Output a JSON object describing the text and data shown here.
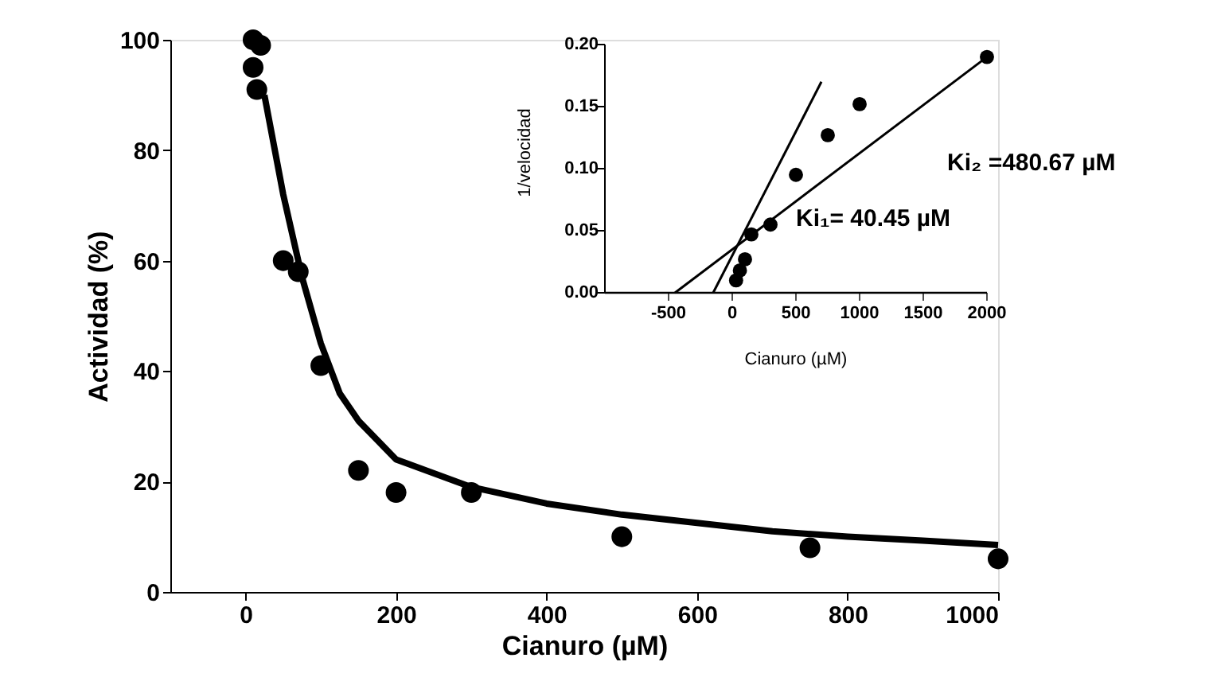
{
  "chart_data": [
    {
      "type": "line",
      "xlabel": "Cianuro (µM)",
      "ylabel": "Actividad (%)",
      "xlim": [
        -100,
        1000
      ],
      "ylim": [
        0,
        100
      ],
      "xticks": [
        0,
        200,
        400,
        600,
        800,
        1000
      ],
      "yticks": [
        0,
        20,
        40,
        60,
        80,
        100
      ],
      "grid": false,
      "marker": "circle",
      "series": [
        {
          "type": "scatter",
          "color": "#000000",
          "x": [
            10,
            20,
            10,
            15,
            50,
            70,
            100,
            150,
            200,
            300,
            500,
            750,
            1000
          ],
          "values": [
            100,
            99,
            95,
            91,
            60,
            58,
            41,
            22,
            18,
            18,
            10,
            8,
            6
          ]
        },
        {
          "color": "#000000",
          "marker": "none",
          "x": [
            25,
            50,
            75,
            100,
            125,
            150,
            200,
            300,
            400,
            500,
            600,
            700,
            800,
            900,
            1000
          ],
          "values": [
            90,
            72,
            57,
            45,
            36,
            31,
            24,
            19,
            16,
            14,
            12.5,
            11,
            10,
            9.3,
            8.5
          ]
        }
      ]
    },
    {
      "type": "line",
      "xlabel": "Cianuro (µM)",
      "ylabel": "1/velocidad",
      "xlim": [
        -1000,
        2000
      ],
      "ylim": [
        0,
        0.2
      ],
      "xticks": [
        -500,
        0,
        500,
        1000,
        1500,
        2000
      ],
      "yticks": [
        {
          "value": 0,
          "label": "0.00"
        },
        {
          "value": 0.05,
          "label": "0.05"
        },
        {
          "value": 0.1,
          "label": "0.10"
        },
        {
          "value": 0.15,
          "label": "0.15"
        },
        {
          "value": 0.2,
          "label": "0.20"
        }
      ],
      "grid": false,
      "marker": "circle",
      "annotations": [
        "Ki₂ =480.67 µM",
        "Ki₁= 40.45 µM"
      ],
      "series": [
        {
          "type": "scatter",
          "color": "#000000",
          "x": [
            2000,
            1000,
            750,
            500,
            300,
            150,
            100,
            60,
            30
          ],
          "values": [
            0.19,
            0.152,
            0.127,
            0.095,
            0.055,
            0.047,
            0.027,
            0.018,
            0.01
          ]
        },
        {
          "color": "#000000",
          "marker": "none",
          "x": [
            -150,
            700
          ],
          "values": [
            0,
            0.17
          ]
        },
        {
          "color": "#000000",
          "marker": "none",
          "x": [
            -450,
            2000
          ],
          "values": [
            0,
            0.19
          ]
        }
      ]
    }
  ]
}
